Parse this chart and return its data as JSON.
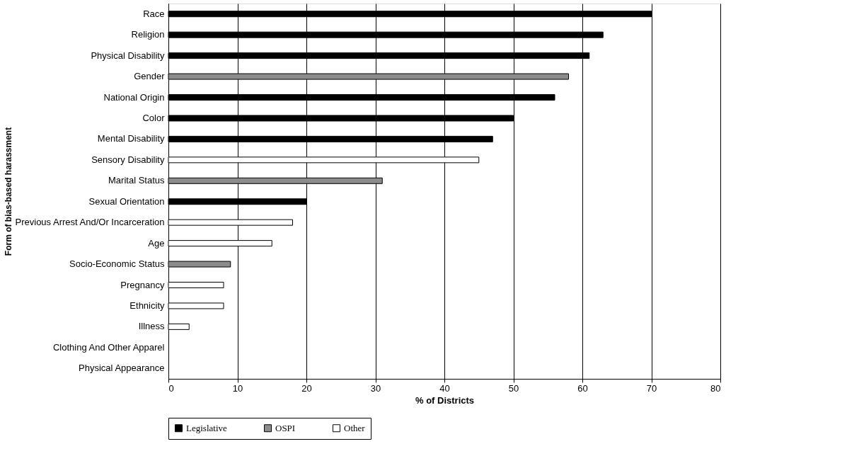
{
  "chart_data": {
    "type": "bar",
    "orientation": "horizontal",
    "xlabel": "% of Districts",
    "ylabel": "Form of bias-based harassment",
    "categories": [
      "Race",
      "Religion",
      "Physical Disability",
      "Gender",
      "National Origin ",
      "Color",
      "Mental Disability",
      "Sensory Disability",
      "Marital Status",
      "Sexual Orientation",
      "Previous Arrest And/Or Incarceration",
      "Age",
      "Socio-Economic Status",
      "Pregnancy",
      "Ethnicity",
      "Illness",
      "Clothing And Other Apparel",
      "Physical Appearance"
    ],
    "series": [
      {
        "name": "Legislative",
        "color": "#000000",
        "values": [
          70,
          63,
          61,
          null,
          56,
          50,
          47,
          null,
          null,
          20,
          null,
          null,
          null,
          null,
          null,
          null,
          null,
          null
        ]
      },
      {
        "name": "OSPI",
        "color": "#8c8c8c",
        "values": [
          null,
          null,
          null,
          58,
          null,
          null,
          null,
          null,
          31,
          null,
          null,
          null,
          9,
          null,
          null,
          null,
          null,
          null
        ]
      },
      {
        "name": "Other",
        "color": "#ffffff",
        "values": [
          null,
          null,
          null,
          null,
          null,
          null,
          null,
          45,
          null,
          null,
          18,
          15,
          null,
          8,
          8,
          3,
          null,
          null
        ]
      }
    ],
    "xlim": [
      0,
      80
    ],
    "xticks": [
      0,
      10,
      20,
      30,
      40,
      50,
      60,
      70,
      80
    ],
    "grid": "x",
    "legend": "bottom"
  }
}
